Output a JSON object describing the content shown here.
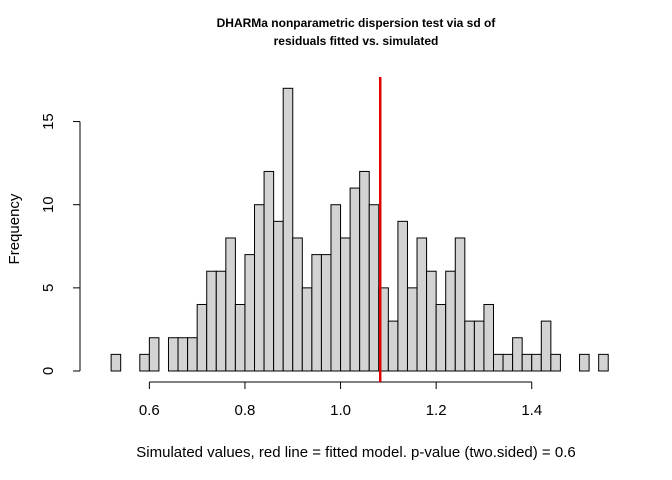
{
  "chart_data": {
    "type": "bar",
    "title_line1": "DHARMa nonparametric dispersion test via sd of",
    "title_line2": "residuals fitted vs. simulated",
    "xlabel": "Simulated values, red line = fitted model. p-value (two.sided) = 0.6",
    "ylabel": "Frequency",
    "bin_start": 0.52,
    "bin_width": 0.02,
    "values": [
      1,
      0,
      0,
      1,
      2,
      0,
      2,
      2,
      2,
      4,
      6,
      6,
      8,
      4,
      7,
      10,
      12,
      9,
      17,
      8,
      5,
      7,
      7,
      10,
      8,
      11,
      12,
      10,
      5,
      3,
      9,
      5,
      8,
      6,
      4,
      6,
      8,
      3,
      3,
      4,
      1,
      1,
      2,
      1,
      1,
      3,
      1,
      0,
      0,
      1,
      0,
      1
    ],
    "xticks": [
      0.6,
      0.8,
      1.0,
      1.2,
      1.4
    ],
    "xtick_labels": [
      "0.6",
      "0.8",
      "1.0",
      "1.2",
      "1.4"
    ],
    "yticks": [
      0,
      5,
      10,
      15
    ],
    "ytick_labels": [
      "0",
      "5",
      "10",
      "15"
    ],
    "xlim": [
      0.48,
      1.57
    ],
    "ylim": [
      0,
      17.68
    ],
    "observed_value": 1.083,
    "bar_color": "#d3d3d3",
    "observed_line_color": "#e00000"
  }
}
